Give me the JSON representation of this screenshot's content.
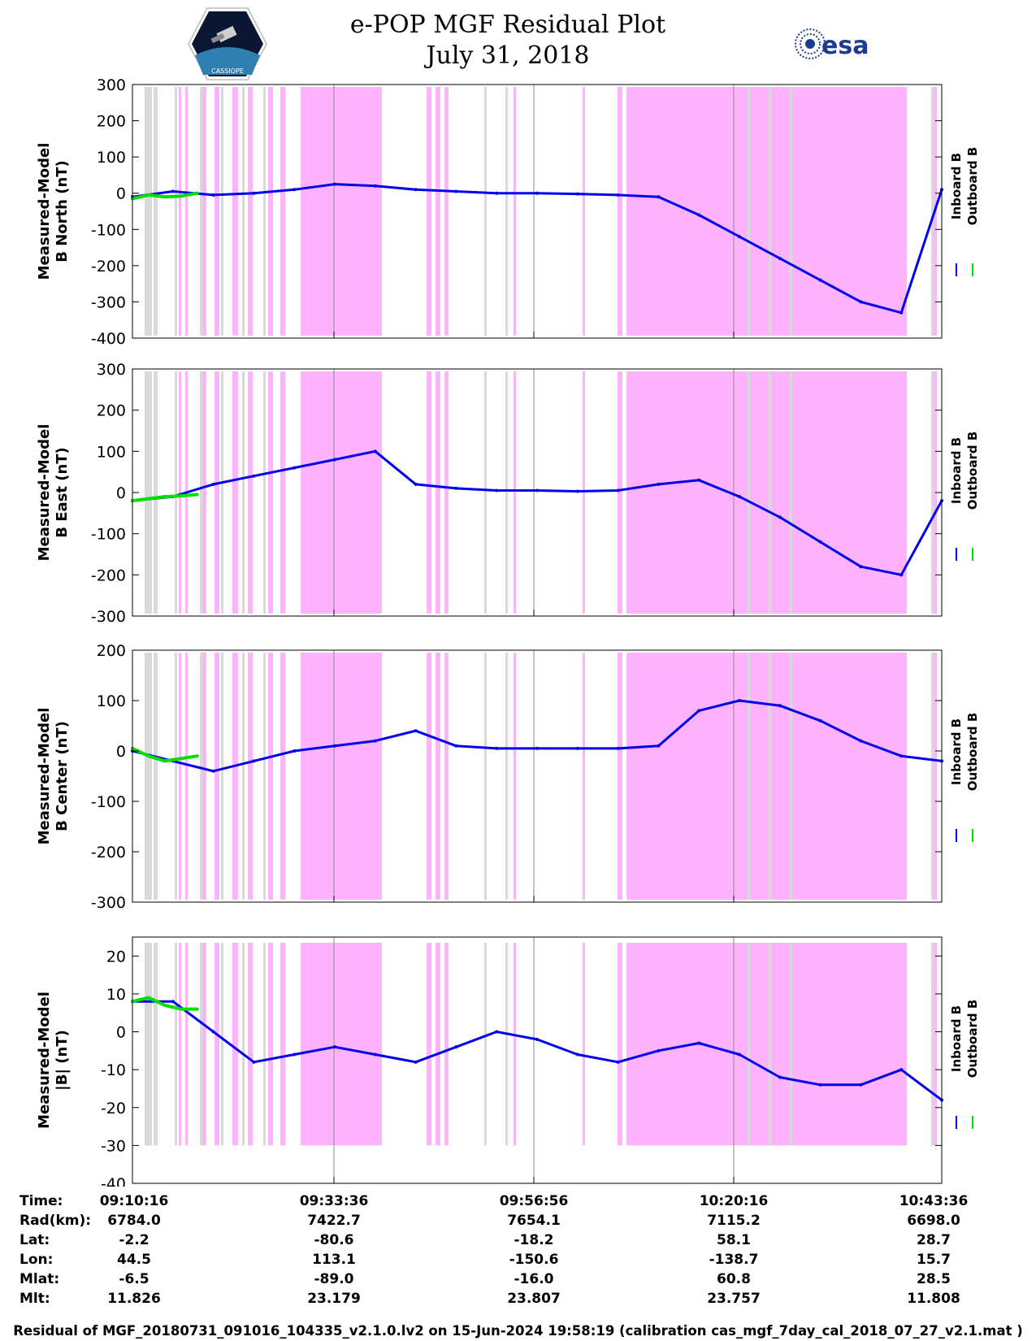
{
  "header": {
    "title_line1": "e-POP MGF Residual Plot",
    "title_line2": "July 31, 2018",
    "logo_left": "cassiope-mission-logo",
    "logo_left_text": "CASSIOPE",
    "logo_right_text": "esa"
  },
  "colors": {
    "inboard": "#0000ee",
    "outboard": "#00e000",
    "shade_magenta": "#ffb3ff",
    "shade_gray": "#d9d9d9"
  },
  "chart_data": [
    {
      "type": "line",
      "ylabel_line1": "Measured-Model",
      "ylabel_line2": "B North (nT)",
      "ylim": [
        -400,
        300
      ],
      "yticks": [
        "300",
        "200",
        "100",
        "0",
        "-100",
        "-200",
        "-300",
        "-400"
      ],
      "legend": [
        "Inboard B",
        "Outboard B"
      ],
      "series": [
        {
          "name": "Inboard B",
          "x": [
            0,
            5,
            10,
            15,
            20,
            25,
            30,
            35,
            40,
            45,
            50,
            55,
            60,
            65,
            70,
            75,
            80,
            85,
            90,
            95,
            100
          ],
          "values": [
            -10,
            5,
            -5,
            0,
            10,
            25,
            20,
            10,
            5,
            0,
            0,
            -2,
            -5,
            -10,
            -60,
            -120,
            -180,
            -240,
            -300,
            -330,
            10
          ]
        },
        {
          "name": "Outboard B",
          "x": [
            0,
            2,
            4,
            6,
            8
          ],
          "values": [
            -15,
            -5,
            -10,
            -8,
            0
          ]
        }
      ]
    },
    {
      "type": "line",
      "ylabel_line1": "Measured-Model",
      "ylabel_line2": "B East (nT)",
      "ylim": [
        -300,
        300
      ],
      "yticks": [
        "300",
        "200",
        "100",
        "0",
        "-100",
        "-200",
        "-300"
      ],
      "legend": [
        "Inboard B",
        "Outboard B"
      ],
      "series": [
        {
          "name": "Inboard B",
          "x": [
            0,
            5,
            10,
            15,
            20,
            25,
            30,
            35,
            40,
            45,
            50,
            55,
            60,
            65,
            70,
            75,
            80,
            85,
            90,
            95,
            100
          ],
          "values": [
            -20,
            -10,
            20,
            40,
            60,
            80,
            100,
            20,
            10,
            5,
            5,
            3,
            5,
            20,
            30,
            -10,
            -60,
            -120,
            -180,
            -200,
            -20
          ]
        },
        {
          "name": "Outboard B",
          "x": [
            0,
            2,
            4,
            6,
            8
          ],
          "values": [
            -20,
            -15,
            -10,
            -8,
            -5
          ]
        }
      ]
    },
    {
      "type": "line",
      "ylabel_line1": "Measured-Model",
      "ylabel_line2": "B Center (nT)",
      "ylim": [
        -300,
        200
      ],
      "yticks": [
        "200",
        "100",
        "0",
        "-100",
        "-200",
        "-300"
      ],
      "legend": [
        "Inboard B",
        "Outboard B"
      ],
      "series": [
        {
          "name": "Inboard B",
          "x": [
            0,
            5,
            10,
            15,
            20,
            25,
            30,
            35,
            40,
            45,
            50,
            55,
            60,
            65,
            70,
            75,
            80,
            85,
            90,
            95,
            100
          ],
          "values": [
            0,
            -20,
            -40,
            -20,
            0,
            10,
            20,
            40,
            10,
            5,
            5,
            5,
            5,
            10,
            80,
            100,
            90,
            60,
            20,
            -10,
            -20
          ]
        },
        {
          "name": "Outboard B",
          "x": [
            0,
            2,
            4,
            6,
            8
          ],
          "values": [
            5,
            -10,
            -20,
            -15,
            -10
          ]
        }
      ]
    },
    {
      "type": "line",
      "ylabel_line1": "Measured-Model",
      "ylabel_line2": "|B| (nT)",
      "ylim": [
        -40,
        25
      ],
      "yticks": [
        "20",
        "10",
        "0",
        "-10",
        "-20",
        "-30",
        "-40"
      ],
      "legend": [
        "Inboard B",
        "Outboard B"
      ],
      "series": [
        {
          "name": "Inboard B",
          "x": [
            0,
            5,
            10,
            15,
            20,
            25,
            30,
            35,
            40,
            45,
            50,
            55,
            60,
            65,
            70,
            75,
            80,
            85,
            90,
            95,
            100
          ],
          "values": [
            8,
            8,
            0,
            -8,
            -6,
            -4,
            -6,
            -8,
            -4,
            0,
            -2,
            -6,
            -8,
            -5,
            -3,
            -6,
            -12,
            -14,
            -14,
            -10,
            -18
          ]
        },
        {
          "name": "Outboard B",
          "x": [
            0,
            2,
            4,
            6,
            8
          ],
          "values": [
            8,
            9,
            7,
            6,
            6
          ]
        }
      ]
    }
  ],
  "info": {
    "labels": [
      "Time:",
      "Rad(km):",
      "Lat:",
      "Lon:",
      "Mlat:",
      "Mlt:"
    ],
    "columns": [
      [
        "09:10:16",
        "6784.0",
        "-2.2",
        "44.5",
        "-6.5",
        "11.826"
      ],
      [
        "09:33:36",
        "7422.7",
        "-80.6",
        "113.1",
        "-89.0",
        "23.179"
      ],
      [
        "09:56:56",
        "7654.1",
        "-18.2",
        "-150.6",
        "-16.0",
        "23.807"
      ],
      [
        "10:20:16",
        "7115.2",
        "58.1",
        "-138.7",
        "60.8",
        "23.757"
      ],
      [
        "10:43:36",
        "6698.0",
        "28.7",
        "15.7",
        "28.5",
        "11.808"
      ]
    ]
  },
  "footer": "Residual of MGF_20180731_091016_104335_v2.1.0.lv2 on 15-Jun-2024 19:58:19 (calibration cas_mgf_7day_cal_2018_07_27_v2.1.mat )"
}
